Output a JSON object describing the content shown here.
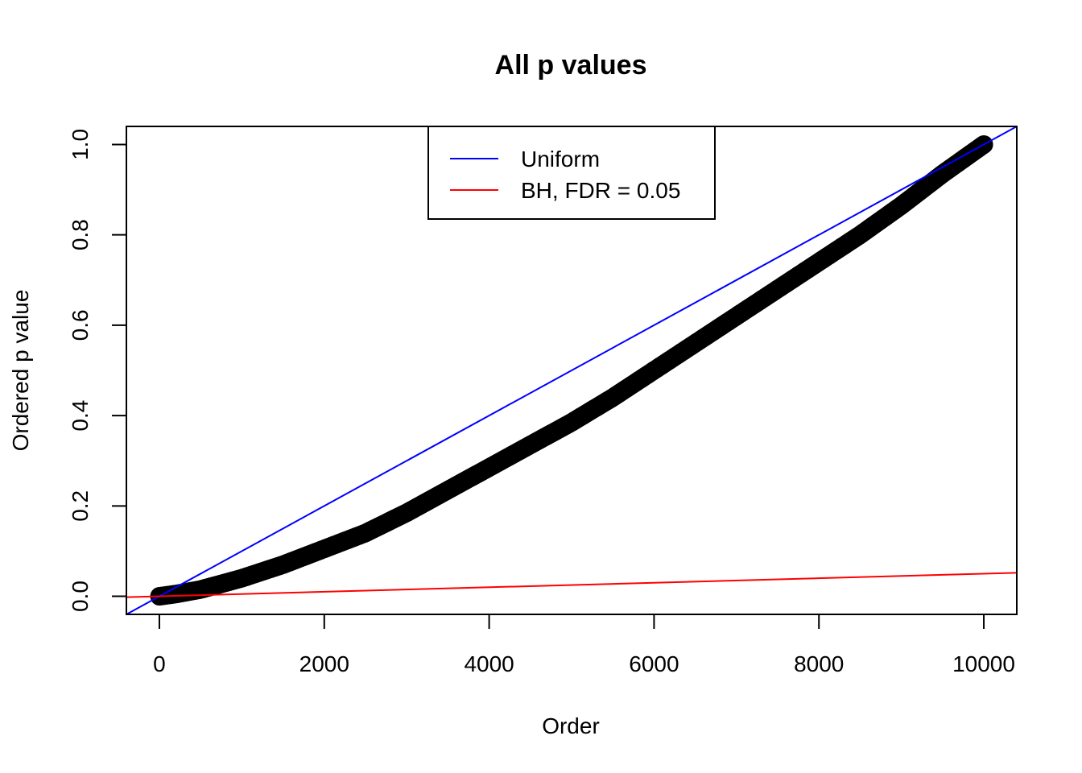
{
  "chart_data": {
    "type": "scatter",
    "title": "All p values",
    "xlabel": "Order",
    "ylabel": "Ordered p value",
    "xlim": [
      -400,
      10400
    ],
    "ylim": [
      -0.04,
      1.04
    ],
    "xticks": [
      0,
      2000,
      4000,
      6000,
      8000,
      10000
    ],
    "xtick_labels": [
      "0",
      "2000",
      "4000",
      "6000",
      "8000",
      "10000"
    ],
    "yticks": [
      0.0,
      0.2,
      0.4,
      0.6,
      0.8,
      1.0
    ],
    "ytick_labels": [
      "0.0",
      "0.2",
      "0.4",
      "0.6",
      "0.8",
      "1.0"
    ],
    "grid": false,
    "legend_position": "top",
    "series": [
      {
        "kind": "points",
        "color": "#000000",
        "n_points": 10000,
        "x": [
          1,
          200,
          500,
          1000,
          1500,
          2000,
          2500,
          3000,
          3500,
          4000,
          4500,
          5000,
          5500,
          6000,
          6500,
          7000,
          7500,
          8000,
          8500,
          9000,
          9500,
          10000
        ],
        "y": [
          0.0,
          0.005,
          0.015,
          0.04,
          0.07,
          0.105,
          0.14,
          0.185,
          0.235,
          0.285,
          0.335,
          0.385,
          0.44,
          0.5,
          0.56,
          0.62,
          0.68,
          0.74,
          0.8,
          0.865,
          0.935,
          1.0
        ]
      },
      {
        "name": "Uniform",
        "kind": "abline",
        "color": "#0000ff",
        "intercept": 0,
        "slope": 0.0001
      },
      {
        "name": "BH, FDR = 0.05",
        "kind": "abline",
        "color": "#ff0000",
        "intercept": 0,
        "slope": 5e-06
      }
    ],
    "legend": [
      {
        "label": "Uniform",
        "color": "#0000ff"
      },
      {
        "label": "BH, FDR = 0.05",
        "color": "#ff0000"
      }
    ]
  }
}
